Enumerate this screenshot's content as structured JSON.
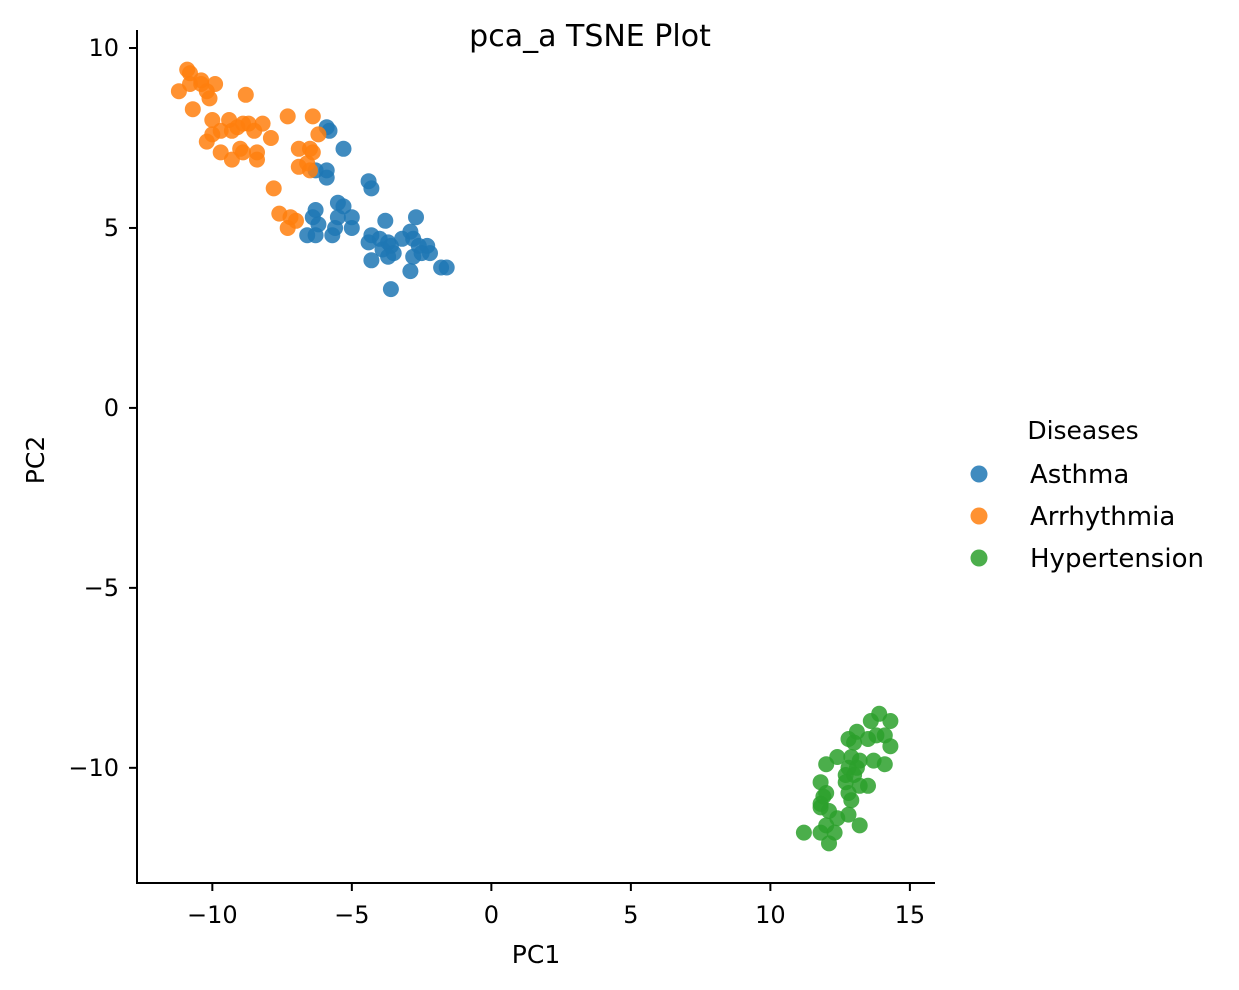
{
  "chart_data": {
    "type": "scatter",
    "title": "pca_a TSNE Plot",
    "xlabel": "PC1",
    "ylabel": "PC2",
    "xlim": [
      -12.7,
      15.9
    ],
    "ylim": [
      -13.2,
      10.5
    ],
    "x_ticks": [
      -10,
      -5,
      0,
      5,
      10,
      15
    ],
    "x_tick_labels": [
      "−10",
      "−5",
      "0",
      "5",
      "10",
      "15"
    ],
    "y_ticks": [
      -10,
      -5,
      0,
      5,
      10
    ],
    "y_tick_labels": [
      "−10",
      "−5",
      "0",
      "5",
      "10"
    ],
    "grid": false,
    "legend": {
      "title": "Diseases",
      "placement": "right, outside plot"
    },
    "series": [
      {
        "name": "Asthma",
        "color": "#1f77b4",
        "points": [
          [
            -5.9,
            7.8
          ],
          [
            -5.8,
            7.7
          ],
          [
            -5.3,
            7.2
          ],
          [
            -6.3,
            6.6
          ],
          [
            -5.9,
            6.6
          ],
          [
            -5.9,
            6.4
          ],
          [
            -4.4,
            6.3
          ],
          [
            -4.3,
            6.1
          ],
          [
            -6.3,
            5.5
          ],
          [
            -6.4,
            5.3
          ],
          [
            -5.5,
            5.7
          ],
          [
            -5.3,
            5.6
          ],
          [
            -5.5,
            5.3
          ],
          [
            -5.0,
            5.3
          ],
          [
            -6.2,
            5.1
          ],
          [
            -5.6,
            5.0
          ],
          [
            -5.0,
            5.0
          ],
          [
            -6.6,
            4.8
          ],
          [
            -6.3,
            4.8
          ],
          [
            -5.7,
            4.8
          ],
          [
            -3.8,
            5.2
          ],
          [
            -2.7,
            5.3
          ],
          [
            -4.3,
            4.8
          ],
          [
            -4.0,
            4.7
          ],
          [
            -4.4,
            4.6
          ],
          [
            -3.7,
            4.6
          ],
          [
            -3.2,
            4.7
          ],
          [
            -2.9,
            4.9
          ],
          [
            -2.8,
            4.7
          ],
          [
            -2.6,
            4.5
          ],
          [
            -2.3,
            4.5
          ],
          [
            -3.6,
            4.5
          ],
          [
            -3.9,
            4.4
          ],
          [
            -3.5,
            4.3
          ],
          [
            -3.7,
            4.2
          ],
          [
            -2.8,
            4.2
          ],
          [
            -2.5,
            4.3
          ],
          [
            -2.2,
            4.3
          ],
          [
            -4.3,
            4.1
          ],
          [
            -2.9,
            3.8
          ],
          [
            -1.8,
            3.9
          ],
          [
            -1.6,
            3.9
          ],
          [
            -3.6,
            3.3
          ]
        ]
      },
      {
        "name": "Arrhythmia",
        "color": "#ff7f0e",
        "points": [
          [
            -10.9,
            9.4
          ],
          [
            -10.8,
            9.3
          ],
          [
            -10.4,
            9.1
          ],
          [
            -10.8,
            9.0
          ],
          [
            -10.4,
            9.0
          ],
          [
            -9.9,
            9.0
          ],
          [
            -11.2,
            8.8
          ],
          [
            -10.2,
            8.8
          ],
          [
            -10.1,
            8.6
          ],
          [
            -8.8,
            8.7
          ],
          [
            -10.7,
            8.3
          ],
          [
            -7.3,
            8.1
          ],
          [
            -6.4,
            8.1
          ],
          [
            -10.0,
            8.0
          ],
          [
            -9.4,
            8.0
          ],
          [
            -8.9,
            7.9
          ],
          [
            -8.7,
            7.9
          ],
          [
            -8.2,
            7.9
          ],
          [
            -9.7,
            7.7
          ],
          [
            -9.3,
            7.7
          ],
          [
            -9.1,
            7.8
          ],
          [
            -8.5,
            7.7
          ],
          [
            -10.0,
            7.6
          ],
          [
            -6.2,
            7.6
          ],
          [
            -7.9,
            7.5
          ],
          [
            -10.2,
            7.4
          ],
          [
            -9.7,
            7.1
          ],
          [
            -9.0,
            7.2
          ],
          [
            -8.9,
            7.1
          ],
          [
            -9.3,
            6.9
          ],
          [
            -8.4,
            7.1
          ],
          [
            -8.4,
            6.9
          ],
          [
            -6.9,
            7.2
          ],
          [
            -6.5,
            7.2
          ],
          [
            -6.4,
            7.1
          ],
          [
            -6.9,
            6.7
          ],
          [
            -6.6,
            6.8
          ],
          [
            -6.5,
            6.6
          ],
          [
            -7.8,
            6.1
          ],
          [
            -7.6,
            5.4
          ],
          [
            -7.2,
            5.3
          ],
          [
            -7.0,
            5.2
          ],
          [
            -7.3,
            5.0
          ]
        ]
      },
      {
        "name": "Hypertension",
        "color": "#2ca02c",
        "points": [
          [
            13.9,
            -8.5
          ],
          [
            14.3,
            -8.7
          ],
          [
            13.6,
            -8.7
          ],
          [
            13.1,
            -9.0
          ],
          [
            12.8,
            -9.2
          ],
          [
            13.0,
            -9.3
          ],
          [
            13.5,
            -9.2
          ],
          [
            13.8,
            -9.1
          ],
          [
            14.1,
            -9.1
          ],
          [
            14.3,
            -9.4
          ],
          [
            12.4,
            -9.7
          ],
          [
            12.9,
            -9.7
          ],
          [
            13.2,
            -9.8
          ],
          [
            13.7,
            -9.8
          ],
          [
            12.0,
            -9.9
          ],
          [
            12.8,
            -10.0
          ],
          [
            13.1,
            -10.0
          ],
          [
            14.1,
            -9.9
          ],
          [
            12.7,
            -10.2
          ],
          [
            13.0,
            -10.2
          ],
          [
            12.7,
            -10.4
          ],
          [
            11.8,
            -10.4
          ],
          [
            13.2,
            -10.5
          ],
          [
            13.5,
            -10.5
          ],
          [
            12.0,
            -10.7
          ],
          [
            12.8,
            -10.7
          ],
          [
            11.9,
            -10.8
          ],
          [
            11.8,
            -11.0
          ],
          [
            12.9,
            -10.9
          ],
          [
            11.8,
            -11.1
          ],
          [
            12.1,
            -11.2
          ],
          [
            12.4,
            -11.4
          ],
          [
            12.8,
            -11.3
          ],
          [
            12.0,
            -11.6
          ],
          [
            13.2,
            -11.6
          ],
          [
            11.2,
            -11.8
          ],
          [
            11.8,
            -11.8
          ],
          [
            12.3,
            -11.8
          ],
          [
            12.1,
            -12.1
          ]
        ]
      }
    ]
  }
}
